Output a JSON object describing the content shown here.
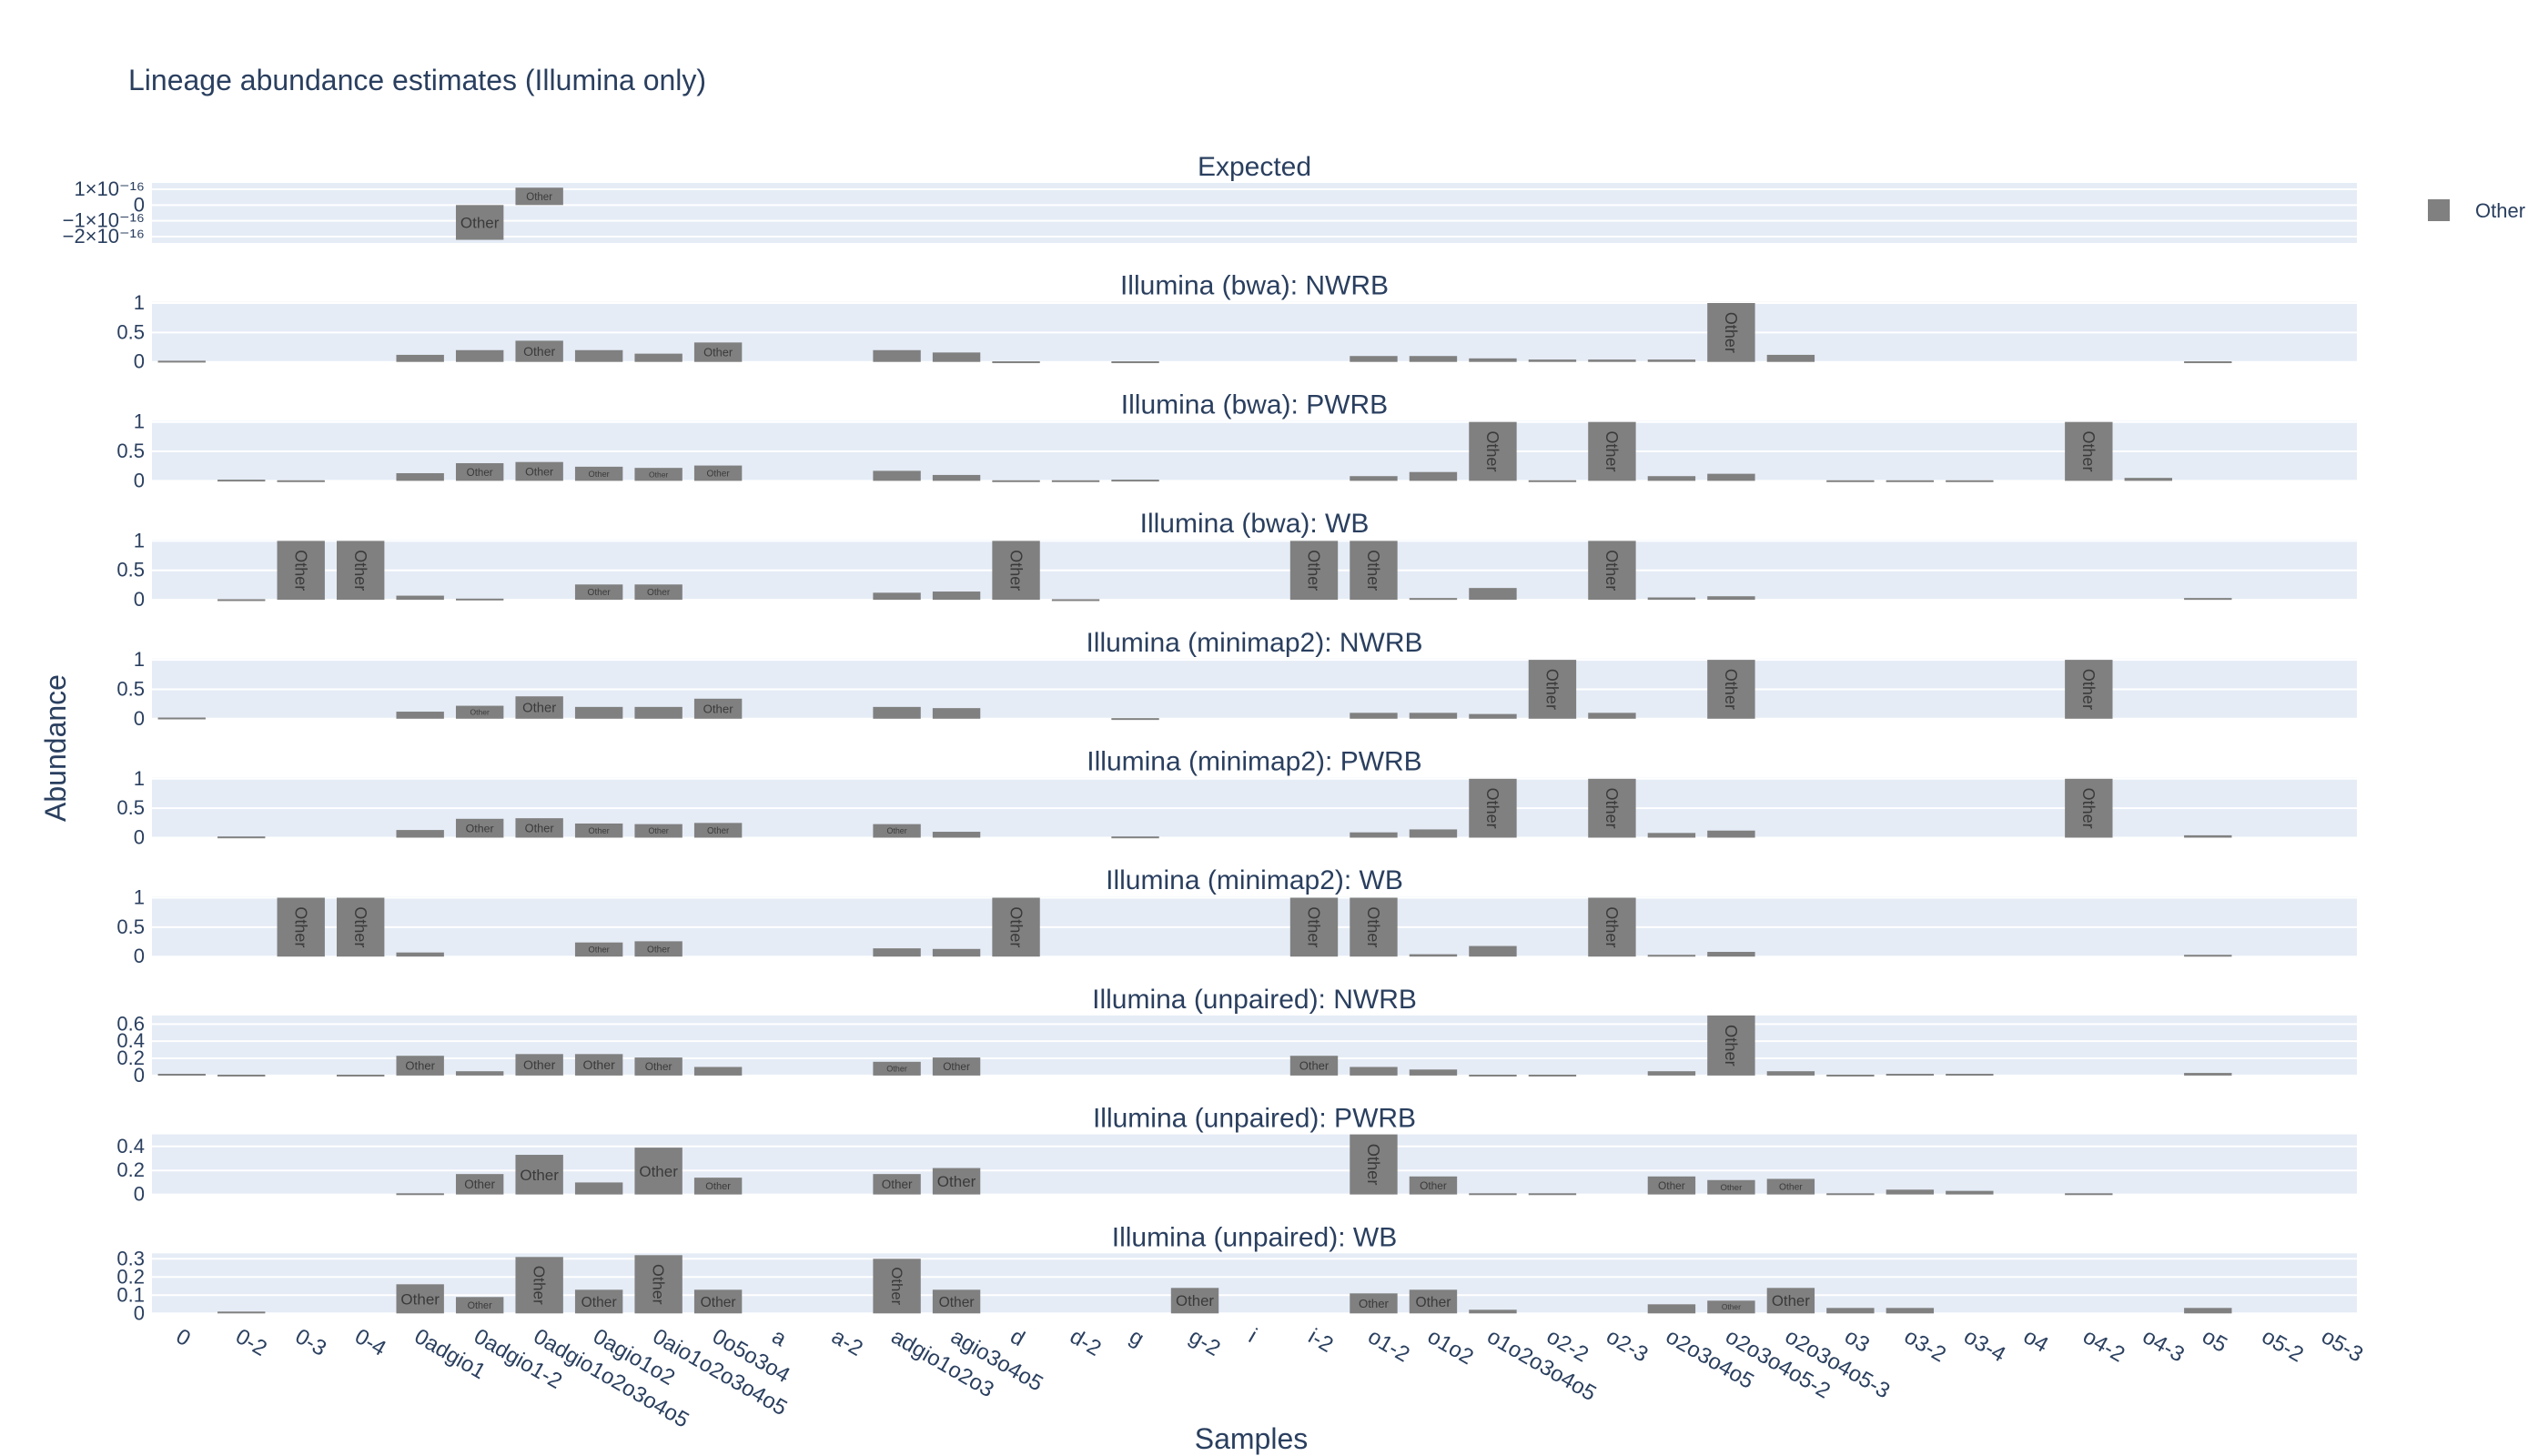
{
  "chart_data": {
    "type": "bar",
    "title": "Lineage abundance estimates (Illumina only)",
    "xlabel": "Samples",
    "ylabel": "Abundance",
    "legend": {
      "position": "top-right",
      "entries": [
        {
          "name": "Other",
          "color": "#808080"
        }
      ]
    },
    "bar_color": "#808080",
    "plot_bg": "#e5ecf6",
    "bar_label": "Other",
    "categories": [
      "0",
      "0-2",
      "0-3",
      "0-4",
      "0adgio1",
      "0adgio1-2",
      "0adgio1o2o3o4o5",
      "0agio1o2",
      "0aio1o2o3o4o5",
      "0o5o3o4",
      "a",
      "a-2",
      "adgio1o2o3",
      "agio3o4o5",
      "d",
      "d-2",
      "g",
      "g-2",
      "i",
      "i-2",
      "o1-2",
      "o1o2",
      "o1o2o3o4o5",
      "o2-2",
      "o2-3",
      "o2o3o4o5",
      "o2o3o4o5-2",
      "o2o3o4o5-3",
      "o3",
      "o3-2",
      "o3-4",
      "o4",
      "o4-2",
      "o4-3",
      "o5",
      "o5-2",
      "o5-3"
    ],
    "panels": [
      {
        "title": "Expected",
        "ylim": [
          -2.4e-16,
          1.4e-16
        ],
        "ticks": [
          {
            "v": 1e-16,
            "label": "1×10⁻¹⁶"
          },
          {
            "v": 0,
            "label": "0"
          },
          {
            "v": -1e-16,
            "label": "−1×10⁻¹⁶"
          },
          {
            "v": -2e-16,
            "label": "−2×10⁻¹⁶"
          }
        ],
        "values": [
          0,
          0,
          0,
          0,
          0,
          -2.2e-16,
          1.1e-16,
          0,
          0,
          0,
          0,
          0,
          0,
          0,
          0,
          0,
          0,
          0,
          0,
          0,
          0,
          0,
          0,
          0,
          0,
          0,
          0,
          0,
          0,
          0,
          0,
          0,
          0,
          0,
          0,
          0,
          0
        ]
      },
      {
        "title": "Illumina (bwa): NWRB",
        "ylim": [
          0,
          1.02
        ],
        "ticks": [
          {
            "v": 1,
            "label": "1"
          },
          {
            "v": 0.5,
            "label": "0.5"
          },
          {
            "v": 0,
            "label": "0"
          }
        ],
        "values": [
          0.02,
          0,
          0,
          0,
          0.12,
          0.2,
          0.36,
          0.2,
          0.14,
          0.33,
          0,
          0,
          0.2,
          0.16,
          0.01,
          0,
          0.01,
          0,
          0,
          0,
          0.1,
          0.1,
          0.06,
          0.04,
          0.04,
          0.04,
          1.0,
          0.12,
          0,
          0,
          0,
          0,
          0,
          0,
          0.01,
          0,
          0
        ]
      },
      {
        "title": "Illumina (bwa): PWRB",
        "ylim": [
          0,
          1.02
        ],
        "ticks": [
          {
            "v": 1,
            "label": "1"
          },
          {
            "v": 0.5,
            "label": "0.5"
          },
          {
            "v": 0,
            "label": "0"
          }
        ],
        "values": [
          0,
          0.02,
          0.01,
          0,
          0.13,
          0.3,
          0.32,
          0.24,
          0.22,
          0.26,
          0,
          0,
          0.17,
          0.1,
          0.01,
          0.01,
          0.02,
          0,
          0,
          0,
          0.08,
          0.15,
          1.0,
          0.01,
          1.0,
          0.08,
          0.12,
          0,
          0.01,
          0.01,
          0.01,
          0,
          1.0,
          0.05,
          0,
          0,
          0
        ]
      },
      {
        "title": "Illumina (bwa): WB",
        "ylim": [
          0,
          1.02
        ],
        "ticks": [
          {
            "v": 1,
            "label": "1"
          },
          {
            "v": 0.5,
            "label": "0.5"
          },
          {
            "v": 0,
            "label": "0"
          }
        ],
        "values": [
          0,
          0.01,
          1.0,
          1.0,
          0.07,
          0.02,
          0,
          0.26,
          0.26,
          0,
          0,
          0,
          0.12,
          0.14,
          1.0,
          0.01,
          0,
          0,
          0,
          1.0,
          1.0,
          0.03,
          0.2,
          0,
          1.0,
          0.04,
          0.06,
          0,
          0,
          0,
          0,
          0,
          0,
          0,
          0.03,
          0,
          0
        ]
      },
      {
        "title": "Illumina (minimap2): NWRB",
        "ylim": [
          0,
          1.02
        ],
        "ticks": [
          {
            "v": 1,
            "label": "1"
          },
          {
            "v": 0.5,
            "label": "0.5"
          },
          {
            "v": 0,
            "label": "0"
          }
        ],
        "values": [
          0.02,
          0,
          0,
          0,
          0.12,
          0.22,
          0.38,
          0.2,
          0.2,
          0.34,
          0,
          0,
          0.2,
          0.18,
          0,
          0,
          0.01,
          0,
          0,
          0,
          0.1,
          0.1,
          0.08,
          1.0,
          0.1,
          0,
          1.0,
          0,
          0,
          0,
          0,
          0,
          1.0,
          0,
          0,
          0,
          0
        ]
      },
      {
        "title": "Illumina (minimap2): PWRB",
        "ylim": [
          0,
          1.02
        ],
        "ticks": [
          {
            "v": 1,
            "label": "1"
          },
          {
            "v": 0.5,
            "label": "0.5"
          },
          {
            "v": 0,
            "label": "0"
          }
        ],
        "values": [
          0,
          0.02,
          0,
          0,
          0.13,
          0.32,
          0.33,
          0.24,
          0.23,
          0.25,
          0,
          0,
          0.23,
          0.1,
          0,
          0,
          0.02,
          0,
          0,
          0,
          0.09,
          0.14,
          1.0,
          0,
          1.0,
          0.08,
          0.12,
          0,
          0,
          0,
          0,
          0,
          1.0,
          0,
          0.04,
          0,
          0
        ]
      },
      {
        "title": "Illumina (minimap2): WB",
        "ylim": [
          0,
          1.02
        ],
        "ticks": [
          {
            "v": 1,
            "label": "1"
          },
          {
            "v": 0.5,
            "label": "0.5"
          },
          {
            "v": 0,
            "label": "0"
          }
        ],
        "values": [
          0,
          0,
          1.0,
          1.0,
          0.07,
          0,
          0,
          0.24,
          0.26,
          0,
          0,
          0,
          0.14,
          0.13,
          1.0,
          0,
          0,
          0,
          0,
          1.0,
          1.0,
          0.04,
          0.18,
          0,
          1.0,
          0.03,
          0.08,
          0,
          0,
          0,
          0,
          0,
          0,
          0,
          0.03,
          0,
          0
        ]
      },
      {
        "title": "Illumina (unpaired): NWRB",
        "ylim": [
          0,
          0.7
        ],
        "ticks": [
          {
            "v": 0.6,
            "label": "0.6"
          },
          {
            "v": 0.4,
            "label": "0.4"
          },
          {
            "v": 0.2,
            "label": "0.2"
          },
          {
            "v": 0,
            "label": "0"
          }
        ],
        "values": [
          0.02,
          0.01,
          0,
          0.01,
          0.23,
          0.05,
          0.25,
          0.25,
          0.21,
          0.1,
          0,
          0,
          0.16,
          0.21,
          0,
          0,
          0,
          0,
          0,
          0.23,
          0.1,
          0.07,
          0.01,
          0.01,
          0,
          0.05,
          0.7,
          0.05,
          0.01,
          0.02,
          0.02,
          0,
          0,
          0,
          0.03,
          0,
          0
        ]
      },
      {
        "title": "Illumina (unpaired): PWRB",
        "ylim": [
          0,
          0.5
        ],
        "ticks": [
          {
            "v": 0.4,
            "label": "0.4"
          },
          {
            "v": 0.2,
            "label": "0.2"
          },
          {
            "v": 0,
            "label": "0"
          }
        ],
        "values": [
          0,
          0,
          0,
          0,
          0.01,
          0.17,
          0.33,
          0.1,
          0.39,
          0.14,
          0,
          0,
          0.17,
          0.22,
          0,
          0,
          0,
          0,
          0,
          0,
          0.5,
          0.15,
          0.01,
          0.01,
          0,
          0.15,
          0.12,
          0.13,
          0.01,
          0.04,
          0.03,
          0,
          0.01,
          0,
          0,
          0,
          0
        ]
      },
      {
        "title": "Illumina (unpaired): WB",
        "ylim": [
          0,
          0.33
        ],
        "ticks": [
          {
            "v": 0.3,
            "label": "0.3"
          },
          {
            "v": 0.2,
            "label": "0.2"
          },
          {
            "v": 0.1,
            "label": "0.1"
          },
          {
            "v": 0,
            "label": "0"
          }
        ],
        "values": [
          0,
          0.01,
          0,
          0,
          0.16,
          0.09,
          0.31,
          0.13,
          0.32,
          0.13,
          0,
          0,
          0.3,
          0.13,
          0,
          0,
          0,
          0.14,
          0,
          0,
          0.11,
          0.13,
          0.02,
          0,
          0,
          0.05,
          0.07,
          0.14,
          0.03,
          0.03,
          0,
          0,
          0,
          0,
          0.03,
          0,
          0
        ]
      }
    ]
  }
}
